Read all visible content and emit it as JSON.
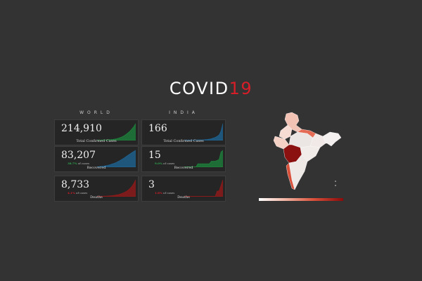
{
  "header": {
    "title_main": "COVID",
    "title_accent": "19"
  },
  "world": {
    "heading": "WORLD",
    "cards": [
      {
        "value": "214,910",
        "label": "Total Confirmed Cases",
        "color": "#1f7a3a",
        "series": [
          2,
          2,
          2,
          3,
          3,
          3,
          4,
          5,
          6,
          8,
          10,
          13,
          17,
          22,
          28,
          36,
          45,
          55,
          68,
          82,
          100
        ]
      },
      {
        "value": "83,207",
        "pct": "38.7%",
        "pct_suffix": "of cases",
        "pct_color": "#2fa84f",
        "label": "Recovered",
        "color": "#1f5f8b",
        "series": [
          2,
          3,
          4,
          5,
          7,
          9,
          12,
          15,
          19,
          23,
          28,
          34,
          40,
          47,
          54,
          62,
          70,
          78,
          86,
          93,
          100
        ]
      },
      {
        "value": "8,733",
        "pct": "4.1%",
        "pct_suffix": "of cases",
        "pct_color": "#d71e28",
        "label": "Deaths",
        "color": "#8b1a1a",
        "series": [
          1,
          1,
          2,
          2,
          3,
          3,
          4,
          5,
          6,
          8,
          10,
          12,
          15,
          19,
          24,
          30,
          38,
          48,
          60,
          78,
          100
        ]
      }
    ]
  },
  "india": {
    "heading": "INDIA",
    "cards": [
      {
        "value": "166",
        "label": "Total Confirmed Cases",
        "color": "#1f5f8b",
        "series": [
          1,
          1,
          1,
          1,
          2,
          2,
          2,
          3,
          3,
          3,
          3,
          5,
          6,
          8,
          10,
          14,
          18,
          24,
          32,
          55,
          100
        ]
      },
      {
        "value": "15",
        "pct": "9.0%",
        "pct_suffix": "of cases",
        "pct_color": "#2fa84f",
        "label": "Recovered",
        "color": "#1f7a3a",
        "series": [
          0,
          0,
          0,
          0,
          0,
          0,
          0,
          20,
          20,
          20,
          20,
          20,
          20,
          20,
          35,
          35,
          35,
          40,
          45,
          90,
          100
        ]
      },
      {
        "value": "3",
        "pct": "1.8%",
        "pct_suffix": "of cases",
        "pct_color": "#d71e28",
        "label": "Deaths",
        "color": "#8b1a1a",
        "series": [
          0,
          0,
          0,
          0,
          0,
          0,
          0,
          0,
          0,
          0,
          0,
          0,
          0,
          0,
          0,
          0,
          0,
          33,
          33,
          66,
          100
        ]
      }
    ]
  },
  "map": {
    "legend_colors": [
      "#ffffff",
      "#f3b8a8",
      "#d9503a",
      "#8b0a0a"
    ]
  }
}
